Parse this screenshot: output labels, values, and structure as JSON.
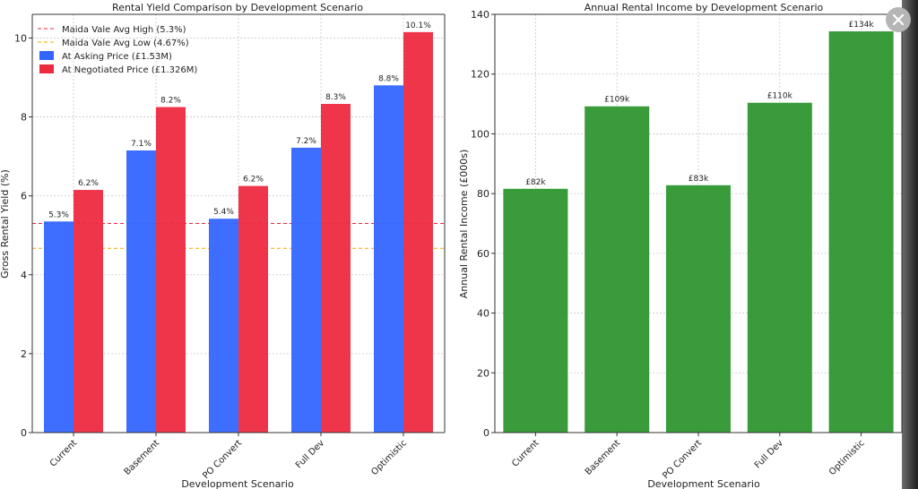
{
  "chart_data": [
    {
      "type": "bar",
      "title": "Rental Yield Comparison by Development Scenario",
      "xlabel": "Development Scenario",
      "ylabel": "Gross Rental Yield (%)",
      "ylim": [
        0,
        10.6
      ],
      "yticks": [
        "0",
        "2",
        "4",
        "6",
        "8",
        "10"
      ],
      "ytick_values": [
        0,
        2,
        4,
        6,
        8,
        10
      ],
      "categories": [
        "Current",
        "Basement",
        "PO Convert",
        "Full Dev",
        "Optimistic"
      ],
      "series": [
        {
          "name": "At Asking Price (£1.53M)",
          "color": "#3366ff",
          "values": [
            5.35,
            7.15,
            5.42,
            7.22,
            8.8
          ],
          "labels": [
            "5.3%",
            "7.1%",
            "5.4%",
            "7.2%",
            "8.8%"
          ]
        },
        {
          "name": "At Negotiated Price (£1.326M)",
          "color": "#ee2a3f",
          "values": [
            6.15,
            8.25,
            6.25,
            8.33,
            10.15
          ],
          "labels": [
            "6.2%",
            "8.2%",
            "6.2%",
            "8.3%",
            "10.1%"
          ]
        }
      ],
      "reference_lines": [
        {
          "name": "Maida Vale Avg High (5.3%)",
          "value": 5.3,
          "color": "#ee2a3f"
        },
        {
          "name": "Maida Vale Avg Low (4.67%)",
          "value": 4.67,
          "color": "#f2a900"
        }
      ],
      "grid": true,
      "legend_position": "top-left"
    },
    {
      "type": "bar",
      "title": "Annual Rental Income by Development Scenario",
      "xlabel": "Development Scenario",
      "ylabel": "Annual Rental Income (£000s)",
      "ylim": [
        0,
        140
      ],
      "yticks": [
        "0",
        "20",
        "40",
        "60",
        "80",
        "100",
        "120",
        "140"
      ],
      "ytick_values": [
        0,
        20,
        40,
        60,
        80,
        100,
        120,
        140
      ],
      "categories": [
        "Current",
        "Basement",
        "PO Convert",
        "Full Dev",
        "Optimistic"
      ],
      "series": [
        {
          "name": "Annual Rental Income",
          "color": "#2e962e",
          "values": [
            81.6,
            109.2,
            82.8,
            110.4,
            134.3
          ],
          "labels": [
            "£82k",
            "£109k",
            "£83k",
            "£110k",
            "£134k"
          ]
        }
      ],
      "grid": true
    }
  ],
  "close_icon": "close-icon"
}
